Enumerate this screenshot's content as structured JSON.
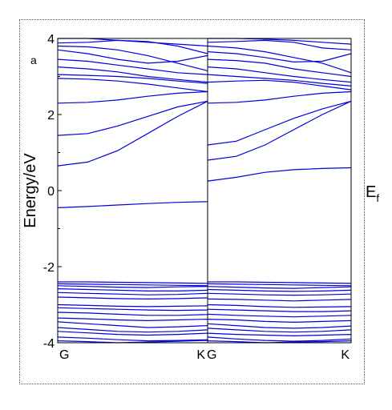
{
  "chart_data": {
    "type": "line",
    "panel_tag": "a",
    "ylabel": "Energy/eV",
    "ylim": [
      -4,
      4
    ],
    "yticks": [
      "4",
      "2",
      "0",
      "-2",
      "-4"
    ],
    "ytick_values": [
      4,
      2,
      0,
      -2,
      -4
    ],
    "fermi_label": "E",
    "fermi_sub": "f",
    "panels": [
      {
        "name": "panel-left",
        "xlabels": [
          "G",
          "K"
        ],
        "bands": [
          [
            -0.45,
            -0.42,
            -0.38,
            -0.34,
            -0.31,
            -0.29
          ],
          [
            0.65,
            0.75,
            1.05,
            1.5,
            1.95,
            2.35
          ],
          [
            1.45,
            1.5,
            1.7,
            1.95,
            2.2,
            2.35
          ],
          [
            2.3,
            2.32,
            2.38,
            2.48,
            2.56,
            2.6
          ],
          [
            2.95,
            2.93,
            2.88,
            2.8,
            2.7,
            2.6
          ],
          [
            3.05,
            3.03,
            3.0,
            2.95,
            2.88,
            2.82
          ],
          [
            3.25,
            3.2,
            3.12,
            3.0,
            2.92,
            2.85
          ],
          [
            3.45,
            3.4,
            3.3,
            3.2,
            3.1,
            3.05
          ],
          [
            3.7,
            3.6,
            3.45,
            3.35,
            3.4,
            3.55
          ],
          [
            3.8,
            3.78,
            3.7,
            3.55,
            3.35,
            3.15
          ],
          [
            3.88,
            3.9,
            3.95,
            3.92,
            3.8,
            3.6
          ],
          [
            4.0,
            4.0,
            3.95,
            3.9,
            3.85,
            3.8
          ],
          [
            -2.4,
            -2.4,
            -2.41,
            -2.42,
            -2.43,
            -2.44
          ],
          [
            -2.45,
            -2.46,
            -2.47,
            -2.48,
            -2.49,
            -2.5
          ],
          [
            -2.5,
            -2.52,
            -2.54,
            -2.55,
            -2.53,
            -2.52
          ],
          [
            -2.58,
            -2.6,
            -2.62,
            -2.64,
            -2.64,
            -2.62
          ],
          [
            -2.68,
            -2.7,
            -2.72,
            -2.74,
            -2.73,
            -2.7
          ],
          [
            -2.8,
            -2.82,
            -2.84,
            -2.85,
            -2.84,
            -2.82
          ],
          [
            -3.0,
            -3.02,
            -3.04,
            -3.05,
            -3.04,
            -3.03
          ],
          [
            -3.08,
            -3.1,
            -3.12,
            -3.14,
            -3.15,
            -3.14
          ],
          [
            -3.2,
            -3.22,
            -3.25,
            -3.28,
            -3.28,
            -3.26
          ],
          [
            -3.35,
            -3.37,
            -3.4,
            -3.42,
            -3.4,
            -3.38
          ],
          [
            -3.45,
            -3.5,
            -3.55,
            -3.6,
            -3.58,
            -3.55
          ],
          [
            -3.6,
            -3.65,
            -3.7,
            -3.72,
            -3.7,
            -3.66
          ],
          [
            -3.7,
            -3.74,
            -3.78,
            -3.8,
            -3.78,
            -3.75
          ],
          [
            -3.85,
            -3.88,
            -3.92,
            -3.95,
            -3.94,
            -3.92
          ],
          [
            -3.95,
            -3.97,
            -4.0,
            -3.98,
            -3.96,
            -3.94
          ]
        ]
      },
      {
        "name": "panel-right",
        "xlabels": [
          "G",
          "K"
        ],
        "bands": [
          [
            0.25,
            0.35,
            0.48,
            0.55,
            0.58,
            0.6
          ],
          [
            0.8,
            0.9,
            1.2,
            1.6,
            2.0,
            2.35
          ],
          [
            1.2,
            1.3,
            1.6,
            1.9,
            2.15,
            2.35
          ],
          [
            2.3,
            2.32,
            2.38,
            2.48,
            2.56,
            2.6
          ],
          [
            2.85,
            2.88,
            2.9,
            2.85,
            2.75,
            2.65
          ],
          [
            3.05,
            3.0,
            2.95,
            2.9,
            2.82,
            2.75
          ],
          [
            3.25,
            3.2,
            3.1,
            3.0,
            2.92,
            2.85
          ],
          [
            3.45,
            3.42,
            3.35,
            3.2,
            3.1,
            3.0
          ],
          [
            3.65,
            3.6,
            3.5,
            3.38,
            3.4,
            3.6
          ],
          [
            3.8,
            3.75,
            3.65,
            3.5,
            3.35,
            3.1
          ],
          [
            3.9,
            3.92,
            3.95,
            3.9,
            3.75,
            3.7
          ],
          [
            4.0,
            4.0,
            3.98,
            3.95,
            3.9,
            3.85
          ],
          [
            -2.4,
            -2.4,
            -2.41,
            -2.42,
            -2.43,
            -2.44
          ],
          [
            -2.45,
            -2.46,
            -2.47,
            -2.48,
            -2.49,
            -2.5
          ],
          [
            -2.52,
            -2.54,
            -2.56,
            -2.57,
            -2.55,
            -2.53
          ],
          [
            -2.6,
            -2.62,
            -2.64,
            -2.65,
            -2.64,
            -2.62
          ],
          [
            -2.7,
            -2.72,
            -2.74,
            -2.75,
            -2.74,
            -2.72
          ],
          [
            -2.85,
            -2.86,
            -2.88,
            -2.9,
            -2.88,
            -2.86
          ],
          [
            -3.0,
            -3.02,
            -3.05,
            -3.07,
            -3.06,
            -3.05
          ],
          [
            -3.12,
            -3.14,
            -3.16,
            -3.18,
            -3.18,
            -3.16
          ],
          [
            -3.25,
            -3.28,
            -3.3,
            -3.32,
            -3.3,
            -3.28
          ],
          [
            -3.38,
            -3.4,
            -3.44,
            -3.46,
            -3.44,
            -3.42
          ],
          [
            -3.5,
            -3.55,
            -3.6,
            -3.62,
            -3.6,
            -3.56
          ],
          [
            -3.62,
            -3.66,
            -3.7,
            -3.72,
            -3.7,
            -3.66
          ],
          [
            -3.75,
            -3.78,
            -3.8,
            -3.82,
            -3.8,
            -3.78
          ],
          [
            -3.85,
            -3.9,
            -3.94,
            -3.96,
            -3.94,
            -3.9
          ],
          [
            -3.95,
            -3.97,
            -4.0,
            -3.98,
            -3.97,
            -3.95
          ]
        ]
      }
    ],
    "grid": false,
    "line_color": "#0000dd"
  }
}
